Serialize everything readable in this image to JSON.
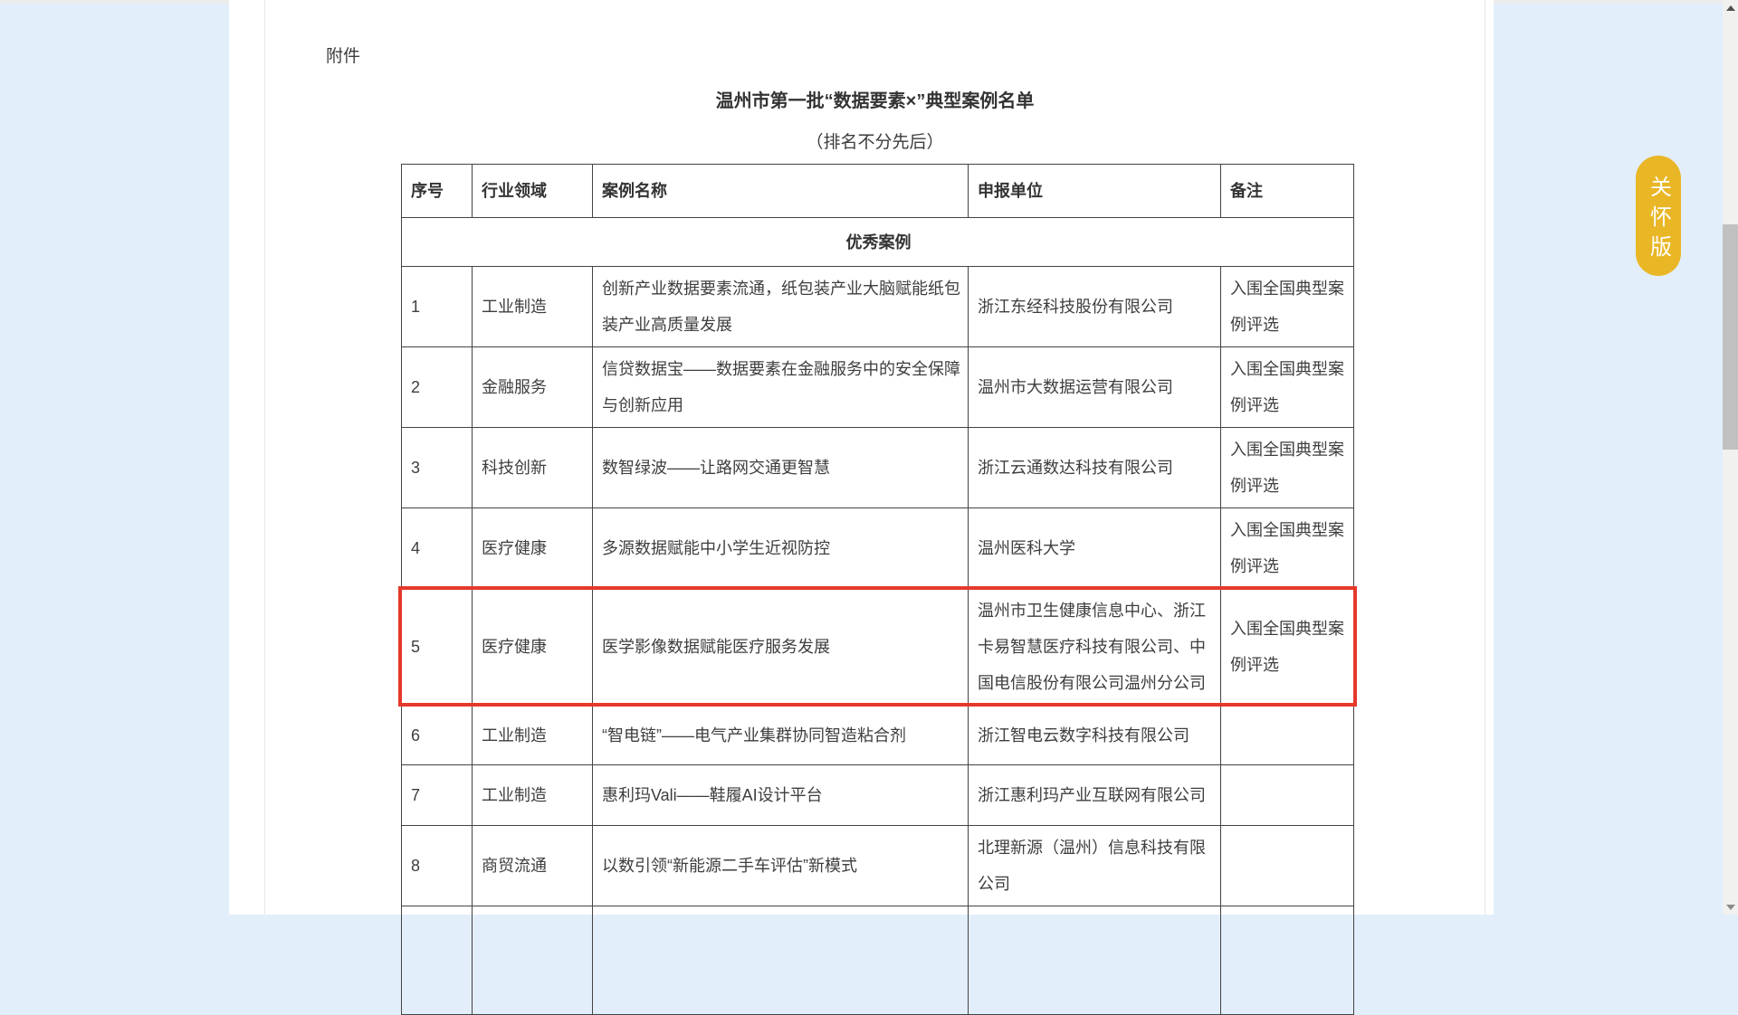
{
  "page": {
    "attachment_label": "附件",
    "title": "温州市第一批“数据要素×”典型案例名单",
    "subtitle": "（排名不分先后）",
    "care_button_label": "关怀版"
  },
  "colors": {
    "background_blue": "#e3eefb",
    "care_button_yellow": "#e9b626",
    "highlight_red": "#e5392b",
    "table_border": "#434343"
  },
  "table": {
    "headers": [
      "序号",
      "行业领域",
      "案例名称",
      "申报单位",
      "备注"
    ],
    "section_title": "优秀案例",
    "rows": [
      {
        "no": "1",
        "industry": "工业制造",
        "case": "创新产业数据要素流通，纸包装产业大脑赋能纸包装产业高质量发展",
        "org": "浙江东经科技股份有限公司",
        "note": "入围全国典型案例评选",
        "highlight": false
      },
      {
        "no": "2",
        "industry": "金融服务",
        "case": "信贷数据宝——数据要素在金融服务中的安全保障与创新应用",
        "org": "温州市大数据运营有限公司",
        "note": "入围全国典型案例评选",
        "highlight": false
      },
      {
        "no": "3",
        "industry": "科技创新",
        "case": "数智绿波——让路网交通更智慧",
        "org": "浙江云通数达科技有限公司",
        "note": "入围全国典型案例评选",
        "highlight": false
      },
      {
        "no": "4",
        "industry": "医疗健康",
        "case": "多源数据赋能中小学生近视防控",
        "org": "温州医科大学",
        "note": "入围全国典型案例评选",
        "highlight": false
      },
      {
        "no": "5",
        "industry": "医疗健康",
        "case": "医学影像数据赋能医疗服务发展",
        "org": "温州市卫生健康信息中心、浙江卡易智慧医疗科技有限公司、中国电信股份有限公司温州分公司",
        "note": "入围全国典型案例评选",
        "highlight": true
      },
      {
        "no": "6",
        "industry": "工业制造",
        "case": "“智电链”——电气产业集群协同智造粘合剂",
        "org": "浙江智电云数字科技有限公司",
        "note": "",
        "highlight": false
      },
      {
        "no": "7",
        "industry": "工业制造",
        "case": "惠利玛Vali——鞋履AI设计平台",
        "org": "浙江惠利玛产业互联网有限公司",
        "note": "",
        "highlight": false
      },
      {
        "no": "8",
        "industry": "商贸流通",
        "case": "以数引领“新能源二手车评估”新模式",
        "org": "北理新源（温州）信息科技有限公司",
        "note": "",
        "highlight": false
      },
      {
        "no": "",
        "industry": "",
        "case": "",
        "org": "",
        "note": "",
        "highlight": false
      }
    ]
  }
}
